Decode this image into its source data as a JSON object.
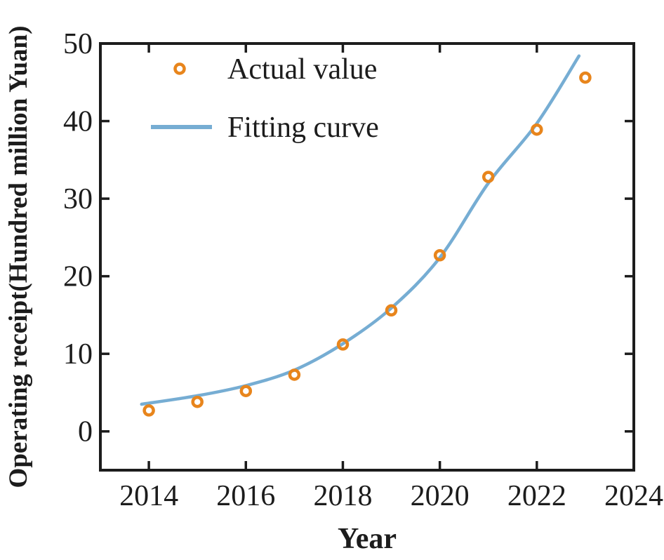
{
  "colors": {
    "axis": "#1c1c1c",
    "text": "#1c1c1c",
    "background": "#ffffff",
    "actual_marker": "#E8851C",
    "fitting_line": "#76ADD3"
  },
  "chart_data": {
    "type": "scatter",
    "title": "",
    "xlabel": "Year",
    "ylabel": "Operating receipt(Hundred million Yuan)",
    "xlim": [
      2013,
      2024
    ],
    "ylim": [
      -5,
      50
    ],
    "x_ticks": [
      2014,
      2016,
      2018,
      2020,
      2022,
      2024
    ],
    "y_ticks": [
      0,
      10,
      20,
      30,
      40,
      50
    ],
    "grid": false,
    "legend_position": "upper-left-inside",
    "series": [
      {
        "name": "Actual value",
        "type": "scatter",
        "marker": "open-circle",
        "color": "#E8851C",
        "x": [
          2014,
          2015,
          2016,
          2017,
          2018,
          2019,
          2020,
          2021,
          2022,
          2023
        ],
        "y": [
          2.7,
          3.8,
          5.2,
          7.3,
          11.2,
          15.6,
          22.7,
          32.8,
          38.9,
          45.6
        ]
      },
      {
        "name": "Fitting curve",
        "type": "line",
        "color": "#76ADD3",
        "points": [
          [
            2013.85,
            3.5
          ],
          [
            2015,
            4.6
          ],
          [
            2016,
            5.9
          ],
          [
            2017,
            7.9
          ],
          [
            2018,
            11.3
          ],
          [
            2019,
            15.9
          ],
          [
            2020,
            22.4
          ],
          [
            2021,
            32.0
          ],
          [
            2022,
            39.7
          ],
          [
            2022.87,
            48.4
          ]
        ]
      }
    ]
  }
}
